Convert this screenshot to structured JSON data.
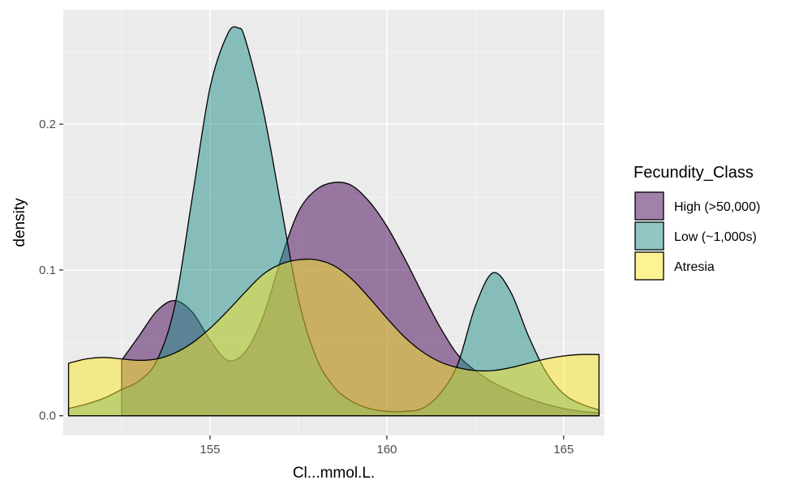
{
  "chart_data": {
    "type": "area",
    "title": "",
    "xlabel": "Cl...mmol.L.",
    "ylabel": "density",
    "xlim": [
      151,
      166
    ],
    "ylim": [
      0,
      0.27
    ],
    "x_ticks": [
      155,
      160,
      165
    ],
    "x_tick_labels": [
      "155",
      "160",
      "165"
    ],
    "y_ticks": [
      0,
      0.1,
      0.2
    ],
    "y_tick_labels": [
      "0.0",
      "0.1",
      "0.2"
    ],
    "grid": true,
    "legend": {
      "title": "Fecundity_Class",
      "position": "right"
    },
    "series": [
      {
        "name": "High (>50,000)",
        "color": "#440154",
        "x": [
          151.0,
          152.5,
          153.0,
          153.5,
          154.0,
          154.5,
          155.0,
          155.5,
          156.0,
          156.5,
          157.0,
          157.5,
          158.0,
          158.5,
          159.0,
          159.5,
          160.0,
          160.5,
          161.0,
          161.5,
          162.0,
          162.5,
          163.0,
          163.5,
          164.0,
          164.5,
          165.0,
          165.5,
          166.0
        ],
        "y": [
          null,
          0.038,
          0.055,
          0.072,
          0.079,
          0.071,
          0.052,
          0.038,
          0.044,
          0.068,
          0.107,
          0.14,
          0.155,
          0.16,
          0.158,
          0.147,
          0.13,
          0.108,
          0.084,
          0.061,
          0.042,
          0.031,
          0.023,
          0.017,
          0.012,
          0.008,
          0.005,
          0.003,
          0.002
        ]
      },
      {
        "name": "Low (~1,000s)",
        "color": "#21908C",
        "x": [
          151.0,
          151.5,
          152.0,
          152.5,
          153.0,
          153.5,
          154.0,
          154.5,
          155.0,
          155.5,
          155.8,
          156.0,
          156.5,
          157.0,
          157.5,
          158.0,
          158.5,
          159.0,
          159.5,
          160.0,
          160.5,
          161.0,
          161.5,
          162.0,
          162.5,
          163.0,
          163.5,
          164.0,
          164.5,
          165.0,
          165.5,
          166.0
        ],
        "y": [
          0.005,
          0.008,
          0.012,
          0.018,
          0.024,
          0.038,
          0.075,
          0.15,
          0.225,
          0.262,
          0.266,
          0.258,
          0.21,
          0.145,
          0.08,
          0.04,
          0.02,
          0.01,
          0.005,
          0.003,
          0.003,
          0.005,
          0.015,
          0.035,
          0.075,
          0.098,
          0.085,
          0.055,
          0.03,
          0.015,
          0.008,
          0.004
        ]
      },
      {
        "name": "Atresia",
        "color": "#FDE725",
        "x": [
          151.0,
          151.5,
          152.0,
          152.5,
          153.0,
          153.5,
          154.0,
          154.5,
          155.0,
          155.5,
          156.0,
          156.5,
          157.0,
          157.5,
          158.0,
          158.5,
          159.0,
          159.5,
          160.0,
          160.5,
          161.0,
          161.5,
          162.0,
          162.5,
          163.0,
          163.5,
          164.0,
          164.5,
          165.0,
          165.5,
          166.0
        ],
        "y": [
          0.036,
          0.039,
          0.04,
          0.039,
          0.038,
          0.039,
          0.043,
          0.05,
          0.06,
          0.072,
          0.085,
          0.097,
          0.104,
          0.107,
          0.107,
          0.103,
          0.094,
          0.081,
          0.067,
          0.054,
          0.044,
          0.037,
          0.033,
          0.031,
          0.031,
          0.033,
          0.036,
          0.039,
          0.041,
          0.042,
          0.042
        ]
      }
    ]
  }
}
